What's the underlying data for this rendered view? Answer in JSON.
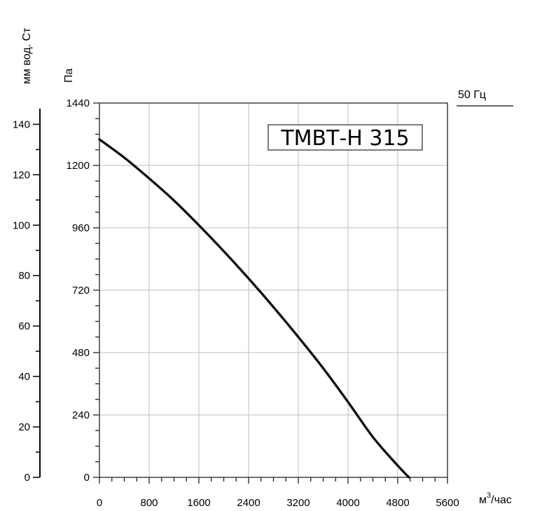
{
  "chart_data": {
    "type": "line",
    "title": "ТМВТ-Н 315",
    "frequency_label": "50 Гц",
    "x_axis": {
      "unit_base": "м",
      "unit_sup": "3",
      "unit_tail": "/час",
      "range": [
        0,
        5600
      ],
      "ticks": [
        0,
        800,
        1600,
        2400,
        3200,
        4000,
        4800,
        5600
      ],
      "minor_step": 200
    },
    "y_axis": {
      "unit": "Па",
      "range": [
        0,
        1440
      ],
      "ticks": [
        0,
        240,
        480,
        720,
        960,
        1200,
        1440
      ],
      "minor_step": 60
    },
    "y2_axis": {
      "unit": "мм вод. Ст",
      "range": [
        0,
        144
      ],
      "ticks": [
        0,
        20,
        40,
        60,
        80,
        100,
        120,
        140
      ],
      "minor_step": 10
    },
    "grid": true,
    "series": [
      {
        "x": [
          0,
          400,
          800,
          1200,
          1600,
          2000,
          2400,
          2800,
          3200,
          3600,
          4000,
          4400,
          4800,
          4980
        ],
        "y": [
          1300,
          1230,
          1150,
          1065,
          970,
          870,
          765,
          655,
          540,
          420,
          290,
          155,
          45,
          0
        ]
      }
    ]
  }
}
